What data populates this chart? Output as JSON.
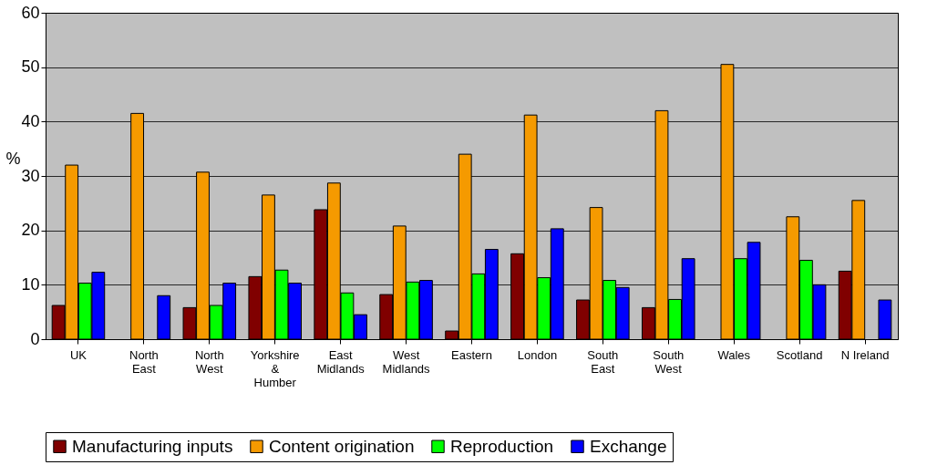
{
  "chart_data": {
    "type": "bar",
    "ylabel": "%",
    "categories": [
      "UK",
      "North East",
      "North West",
      "Yorkshire & Humber",
      "East Midlands",
      "West Midlands",
      "Eastern",
      "London",
      "South East",
      "South West",
      "Wales",
      "Scotland",
      "N Ireland"
    ],
    "series": [
      {
        "name": "Manufacturing inputs",
        "color": "#800000",
        "values": [
          6.2,
          0,
          5.8,
          11.5,
          23.8,
          8.2,
          1.5,
          15.7,
          7.2,
          5.8,
          0,
          0,
          12.5
        ]
      },
      {
        "name": "Content origination",
        "color": "#f59a00",
        "values": [
          32,
          41.5,
          30.7,
          26.5,
          28.7,
          20.8,
          34,
          41.2,
          24.2,
          42,
          50.5,
          22.5,
          25.5
        ]
      },
      {
        "name": "Reproduction",
        "color": "#00ff00",
        "values": [
          10.3,
          0,
          6.2,
          12.7,
          8.5,
          10.5,
          12,
          11.3,
          10.8,
          7.3,
          14.8,
          14.5,
          0
        ]
      },
      {
        "name": "Exchange",
        "color": "#0000ff",
        "values": [
          12.3,
          8,
          10.3,
          10.3,
          4.5,
          10.8,
          16.5,
          20.3,
          9.5,
          14.8,
          17.8,
          10,
          7.2
        ]
      }
    ],
    "ylim": [
      0,
      60
    ],
    "yticks": [
      0,
      10,
      20,
      30,
      40,
      50,
      60
    ],
    "grid": "y",
    "legend": "bottom"
  }
}
